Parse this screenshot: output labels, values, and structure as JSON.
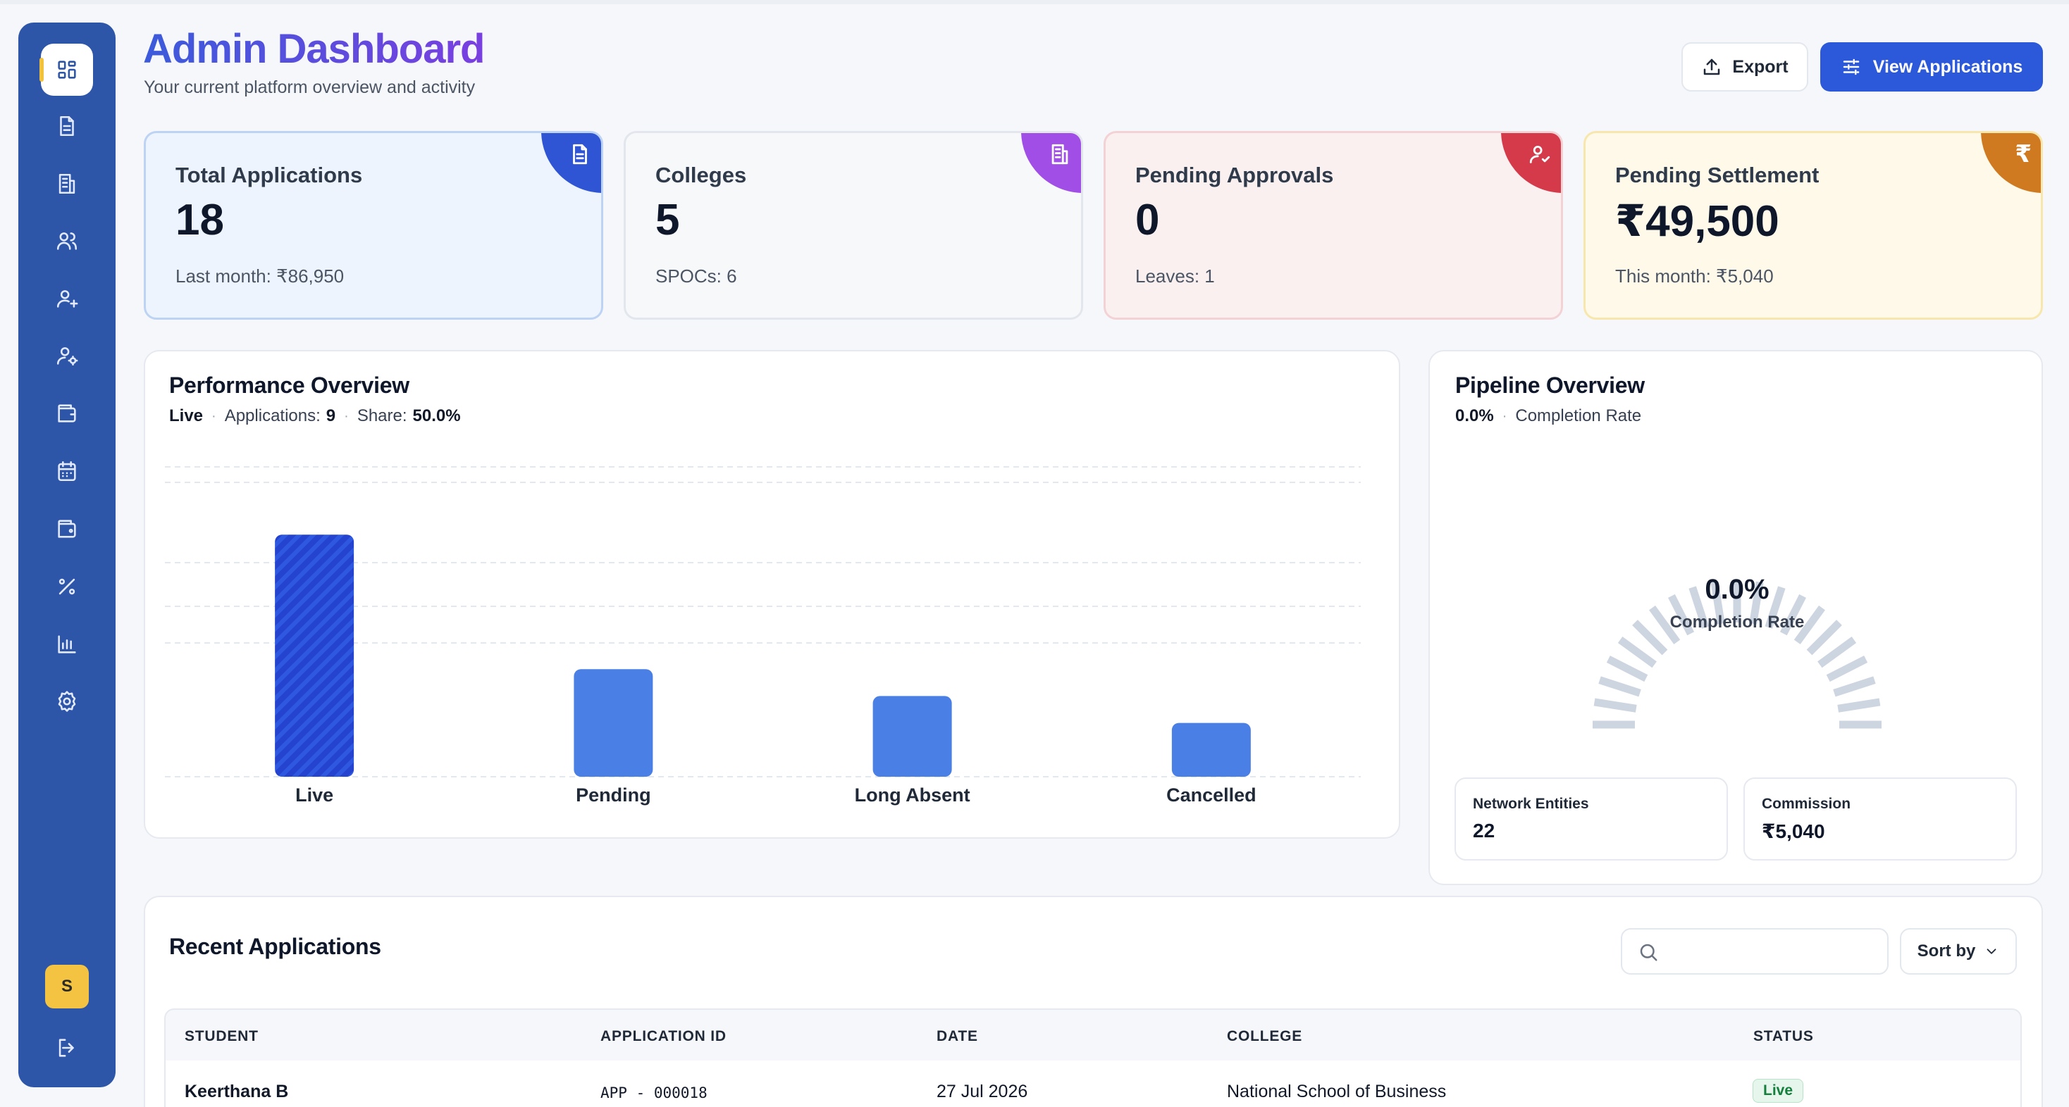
{
  "header": {
    "title": "Admin Dashboard",
    "subtitle": "Your current platform overview and activity",
    "export_label": "Export",
    "view_applications_label": "View Applications"
  },
  "sidebar": {
    "items": [
      {
        "icon": "dashboard-grid-icon",
        "active": true
      },
      {
        "icon": "document-icon"
      },
      {
        "icon": "building-icon"
      },
      {
        "icon": "users-icon"
      },
      {
        "icon": "user-plus-icon"
      },
      {
        "icon": "user-settings-icon"
      },
      {
        "icon": "wallet-icon"
      },
      {
        "icon": "calendar-icon"
      },
      {
        "icon": "wallet-alt-icon"
      },
      {
        "icon": "percent-icon"
      },
      {
        "icon": "bar-chart-icon"
      },
      {
        "icon": "settings-gear-icon"
      }
    ],
    "avatar_initial": "S",
    "logout_icon": "logout-icon"
  },
  "stats": [
    {
      "label": "Total Applications",
      "value": "18",
      "sub": "Last month: ₹86,950",
      "icon": "document-icon",
      "bg": "#eef4fd",
      "border": "#bcd3f4",
      "accent": "#2f55d4"
    },
    {
      "label": "Colleges",
      "value": "5",
      "sub": "SPOCs: 6",
      "icon": "building-icon",
      "bg": "#f7f8fa",
      "border": "#e3e6ec",
      "accent": "#a04ee6"
    },
    {
      "label": "Pending Approvals",
      "value": "0",
      "sub": "Leaves: 1",
      "icon": "user-check-icon",
      "bg": "#fbf0f0",
      "border": "#f3d2d5",
      "accent": "#d43a4a"
    },
    {
      "label": "Pending Settlement",
      "value": "₹49,500",
      "sub": "This month: ₹5,040",
      "icon": "rupee-icon",
      "bg": "#fef9e8",
      "border": "#f8e7ad",
      "accent": "#cf7a20"
    }
  ],
  "performance": {
    "title": "Performance Overview",
    "meta_status": "Live",
    "meta_applications_label": "Applications:",
    "meta_applications_value": "9",
    "meta_share_label": "Share:",
    "meta_share_value": "50.0%"
  },
  "chart_data": {
    "type": "bar",
    "categories": [
      "Live",
      "Pending",
      "Long Absent",
      "Cancelled"
    ],
    "values": [
      9,
      4,
      3,
      2
    ],
    "ylim": [
      0,
      12
    ],
    "highlighted_category": "Live",
    "grid": true,
    "colors": {
      "bar": "#4a7fe6",
      "highlight": "#2444cf"
    }
  },
  "pipeline": {
    "title": "Pipeline Overview",
    "meta_value": "0.0%",
    "meta_label": "Completion Rate",
    "gauge_value": "0.0%",
    "gauge_label": "Completion Rate",
    "gauge_fraction": 0.0,
    "network_entities_label": "Network Entities",
    "network_entities_value": "22",
    "commission_label": "Commission",
    "commission_value": "₹5,040"
  },
  "recent": {
    "title": "Recent Applications",
    "search_placeholder": "",
    "sort_label": "Sort by",
    "columns": [
      "STUDENT",
      "APPLICATION ID",
      "DATE",
      "COLLEGE",
      "STATUS"
    ],
    "rows": [
      {
        "student": "Keerthana B",
        "application_id": "APP - 000018",
        "date": "27 Jul 2026",
        "college": "National School of Business",
        "status": "Live"
      }
    ]
  }
}
